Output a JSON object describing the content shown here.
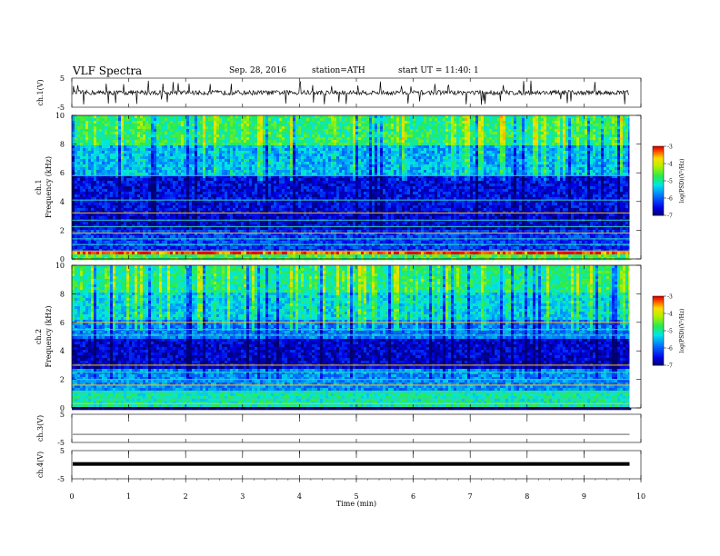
{
  "header": {
    "title": "VLF  Spectra",
    "date": "Sep. 28, 2016",
    "station": "station=ATH",
    "start": "start  UT  =   11:40: 1"
  },
  "chart_data": [
    {
      "type": "line",
      "panel": "ch1-waveform",
      "ylabel": "ch.1(V)",
      "yticks": [
        "5",
        "-5"
      ],
      "ylim": [
        -5,
        5
      ],
      "xlim": [
        0,
        10
      ],
      "trace": "noisy waveform around 0 V with frequent spikes"
    },
    {
      "type": "heatmap",
      "panel": "ch1-spectrogram",
      "ylabel": "ch.1\nFrequency  (kHz)",
      "ylabel_lines": [
        "ch.1",
        "Frequency  (kHz)"
      ],
      "yticks": [
        "0",
        "2",
        "4",
        "6",
        "8",
        "10"
      ],
      "ylim": [
        0,
        10
      ],
      "xlim": [
        0,
        9.8
      ],
      "colorbar": {
        "label": "log(PSD)(V²/Hz)",
        "ticks": [
          "-3",
          "-4",
          "-5",
          "-6",
          "-7"
        ],
        "range": [
          -7,
          -3
        ]
      },
      "bands": [
        {
          "f": [
            0.0,
            0.4
          ],
          "level": -4.6
        },
        {
          "f": [
            0.4,
            0.6
          ],
          "level": -3.2
        },
        {
          "f": [
            0.6,
            2.0
          ],
          "level": -6.2
        },
        {
          "f": [
            2.0,
            3.2
          ],
          "level": -6.6
        },
        {
          "f": [
            3.2,
            5.8
          ],
          "level": -6.5
        },
        {
          "f": [
            5.8,
            8.0
          ],
          "level": -5.5
        },
        {
          "f": [
            8.0,
            10.0
          ],
          "level": -4.8
        }
      ]
    },
    {
      "type": "heatmap",
      "panel": "ch2-spectrogram",
      "ylabel": "ch.2\nFrequency  (kHz)",
      "ylabel_lines": [
        "ch.2",
        "Frequency  (kHz)"
      ],
      "yticks": [
        "0",
        "2",
        "4",
        "6",
        "8",
        "10"
      ],
      "ylim": [
        0,
        10
      ],
      "xlim": [
        0,
        9.8
      ],
      "colorbar": {
        "label": "log(PSD)(V²/Hz)",
        "ticks": [
          "-3",
          "-4",
          "-5",
          "-6",
          "-7"
        ],
        "range": [
          -7,
          -3
        ]
      },
      "bands": [
        {
          "f": [
            0.0,
            1.2
          ],
          "level": -5.0
        },
        {
          "f": [
            1.2,
            2.8
          ],
          "level": -5.7
        },
        {
          "f": [
            2.8,
            4.8
          ],
          "level": -6.6
        },
        {
          "f": [
            4.8,
            6.2
          ],
          "level": -5.8
        },
        {
          "f": [
            6.2,
            8.0
          ],
          "level": -5.3
        },
        {
          "f": [
            8.0,
            10.0
          ],
          "level": -4.9
        }
      ]
    },
    {
      "type": "line",
      "panel": "ch3-waveform",
      "ylabel": "ch.3(V)",
      "yticks": [
        "5",
        "-5"
      ],
      "ylim": [
        -5,
        5
      ],
      "xlim": [
        0,
        10
      ],
      "trace": "flat line near -3 V"
    },
    {
      "type": "line",
      "panel": "ch4-waveform",
      "ylabel": "ch.4(V)",
      "yticks": [
        "5",
        "-5"
      ],
      "ylim": [
        -5,
        5
      ],
      "xlim": [
        0,
        10
      ],
      "trace": "thick flat line near 0 V",
      "xlabel": "Time  (min)",
      "xticks": [
        "0",
        "1",
        "2",
        "3",
        "4",
        "5",
        "6",
        "7",
        "8",
        "9",
        "10"
      ]
    }
  ]
}
